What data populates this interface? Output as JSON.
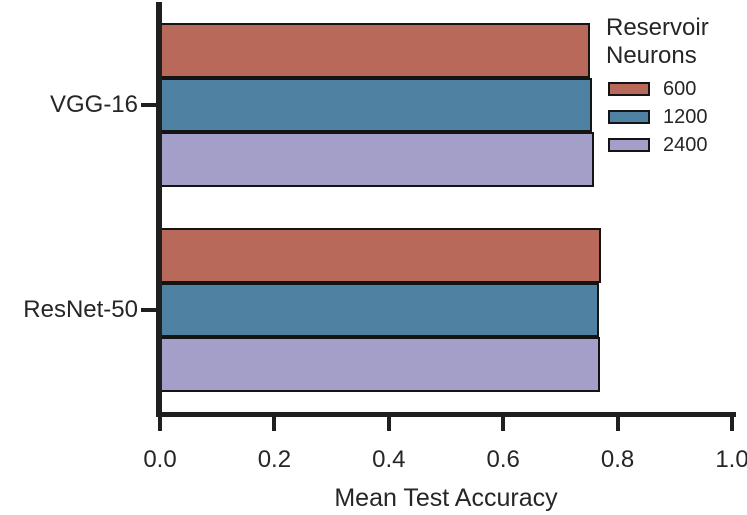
{
  "chart_data": {
    "type": "bar",
    "orientation": "horizontal",
    "xlabel": "Mean Test Accuracy",
    "ylabel": "",
    "xlim": [
      0.0,
      1.0
    ],
    "xticks": [
      0.0,
      0.2,
      0.4,
      0.6,
      0.8,
      1.0
    ],
    "xtick_labels": [
      "0.0",
      "0.2",
      "0.4",
      "0.6",
      "0.8",
      "1.0"
    ],
    "categories": [
      "VGG-16",
      "ResNet-50"
    ],
    "series": [
      {
        "name": "600",
        "color": "#b8695a",
        "values": [
          0.751,
          0.771
        ]
      },
      {
        "name": "1200",
        "color": "#4f82a2",
        "values": [
          0.755,
          0.768
        ]
      },
      {
        "name": "2400",
        "color": "#a39fc9",
        "values": [
          0.758,
          0.77
        ]
      }
    ],
    "legend": {
      "title": "Reservoir Neurons",
      "position": "upper right",
      "entries": [
        "600",
        "1200",
        "2400"
      ]
    },
    "grid": false,
    "bar_edge_color": "#141414",
    "spine_color": "#1f1f1f",
    "text_color": "#262626"
  }
}
